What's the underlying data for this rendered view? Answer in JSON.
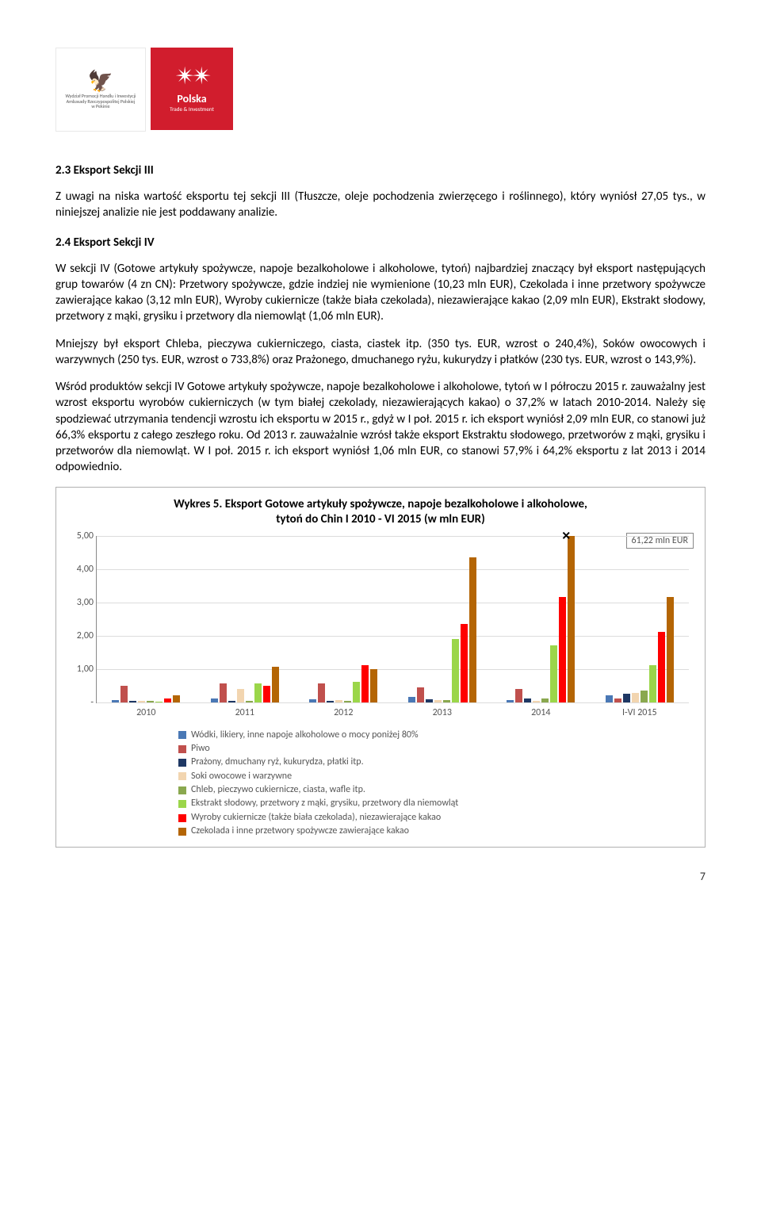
{
  "logos": {
    "l1_line1": "Wydział Promocji Handlu i Inwestycji",
    "l1_line2": "Ambasady Rzeczypospolitej Polskiej",
    "l1_line3": "w Pekinie",
    "l2_title": "Polska",
    "l2_sub": "Trade & Investment"
  },
  "s1_heading": "2.3 Eksport Sekcji III",
  "s1_p1": "Z uwagi na niska wartość eksportu tej sekcji III (Tłuszcze, oleje pochodzenia zwierzęcego i roślinnego), który wyniósł 27,05 tys., w niniejszej analizie nie jest poddawany analizie.",
  "s2_heading": "2.4 Eksport Sekcji IV",
  "s2_p1": "W sekcji IV (Gotowe artykuły spożywcze, napoje bezalkoholowe i alkoholowe, tytoń) najbardziej znaczący był eksport następujących grup towarów (4 zn CN): Przetwory spożywcze, gdzie indziej nie wymienione (10,23 mln EUR), Czekolada i inne przetwory spożywcze zawierające kakao (3,12 mln EUR), Wyroby cukiernicze (także biała czekolada), niezawierające kakao (2,09 mln EUR), Ekstrakt słodowy, przetwory z mąki, grysiku i przetwory dla niemowląt (1,06 mln EUR).",
  "s2_p2": "Mniejszy był eksport Chleba, pieczywa cukierniczego, ciasta, ciastek itp. (350 tys. EUR, wzrost o 240,4%), Soków owocowych i warzywnych (250 tys. EUR, wzrost o 733,8%) oraz Prażonego, dmuchanego ryżu, kukurydzy i płatków (230 tys. EUR, wzrost o 143,9%).",
  "s2_p3": "Wśród produktów sekcji IV Gotowe artykuły spożywcze, napoje bezalkoholowe i alkoholowe, tytoń w I półroczu 2015 r. zauważalny jest wzrost eksportu wyrobów cukierniczych (w tym białej czekolady, niezawierających kakao) o 37,2% w latach 2010-2014. Należy się spodziewać utrzymania tendencji wzrostu ich eksportu w 2015 r., gdyż w I poł. 2015 r. ich eksport wyniósł 2,09 mln EUR, co stanowi już 66,3% eksportu z całego zeszłego roku. Od 2013 r. zauważalnie wzrósł także eksport Ekstraktu słodowego, przetworów z mąki, grysiku i przetworów dla niemowląt. W I poł. 2015 r. ich eksport wyniósł 1,06 mln EUR, co stanowi 57,9% i 64,2% eksportu z lat 2013 i 2014 odpowiednio.",
  "chart": {
    "title_l1": "Wykres 5. Eksport Gotowe artykuły spożywcze, napoje bezalkoholowe i alkoholowe,",
    "title_l2": "tytoń do Chin I 2010 - VI 2015 (w mln EUR)",
    "ylim": [
      0,
      5.0
    ],
    "yticks": [
      "-",
      "1,00",
      "2,00",
      "3,00",
      "4,00",
      "5,00"
    ],
    "callout": "61,22 mln EUR",
    "categories": [
      "2010",
      "2011",
      "2012",
      "2013",
      "2014",
      "I-VI 2015"
    ],
    "series": [
      {
        "name": "Wódki, likiery, inne napoje alkoholowe o mocy poniżej 80%",
        "color": "#4a78b5"
      },
      {
        "name": "Piwo",
        "color": "#c0504d"
      },
      {
        "name": "Prażony, dmuchany ryż, kukurydza, płatki itp.",
        "color": "#1f3864"
      },
      {
        "name": "Soki owocowe i warzywne",
        "color": "#f2d5b0"
      },
      {
        "name": "Chleb, pieczywo cukiernicze, ciasta, wafle itp.",
        "color": "#8aa84f"
      },
      {
        "name": "Ekstrakt słodowy, przetwory z mąki, grysiku, przetwory dla niemowląt",
        "color": "#9bd64a"
      },
      {
        "name": "Wyroby cukiernicze (także biała czekolada), niezawierające kakao",
        "color": "#ff0000"
      },
      {
        "name": "Czekolada i inne przetwory spożywcze zawierające kakao",
        "color": "#b46504"
      }
    ],
    "data": [
      [
        0.05,
        0.5,
        0.03,
        0.03,
        0.03,
        0.02,
        0.1,
        0.2
      ],
      [
        0.1,
        0.55,
        0.03,
        0.4,
        0.03,
        0.55,
        0.5,
        1.05
      ],
      [
        0.08,
        0.55,
        0.03,
        0.06,
        0.03,
        0.6,
        1.1,
        1.0
      ],
      [
        0.15,
        0.45,
        0.08,
        0.05,
        0.06,
        1.9,
        2.35,
        4.35
      ],
      [
        0.06,
        0.4,
        0.1,
        0.03,
        0.1,
        1.7,
        3.15,
        5.0
      ],
      [
        0.2,
        0.1,
        0.25,
        0.28,
        0.35,
        1.1,
        2.1,
        3.15
      ]
    ],
    "marker_col": 4
  },
  "page_num": "7"
}
